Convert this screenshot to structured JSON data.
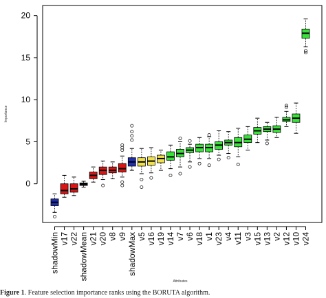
{
  "chart_data": {
    "type": "box",
    "xlabel": "Attributes",
    "ylabel": "Importance",
    "ylim": [
      -4.6,
      21.2
    ],
    "yticks": [
      0,
      5,
      10,
      15,
      20
    ],
    "grid": false,
    "colors": {
      "blue": "#1f2fb0",
      "red": "#d81616",
      "black": "#111111",
      "yellow": "#f2e24a",
      "green": "#3be13b"
    },
    "boxes": [
      {
        "name": "shadowMin",
        "color": "blue",
        "min": -3.4,
        "q1": -2.6,
        "median": -2.2,
        "q3": -1.8,
        "max": -1.2,
        "outliers": [
          -3.9
        ]
      },
      {
        "name": "v17",
        "color": "red",
        "min": -1.6,
        "q1": -1.2,
        "median": -0.8,
        "q3": 0.0,
        "max": 1.0,
        "outliers": []
      },
      {
        "name": "v22",
        "color": "red",
        "min": -1.4,
        "q1": -1.0,
        "median": -0.6,
        "q3": 0.0,
        "max": 0.8,
        "outliers": []
      },
      {
        "name": "shadowMean",
        "color": "black",
        "min": -0.4,
        "q1": -0.2,
        "median": 0.0,
        "q3": 0.1,
        "max": 0.3,
        "outliers": []
      },
      {
        "name": "v21",
        "color": "red",
        "min": 0.2,
        "q1": 0.6,
        "median": 1.0,
        "q3": 1.4,
        "max": 2.0,
        "outliers": []
      },
      {
        "name": "v20",
        "color": "red",
        "min": 0.5,
        "q1": 1.1,
        "median": 1.6,
        "q3": 2.0,
        "max": 2.7,
        "outliers": [
          -0.2
        ]
      },
      {
        "name": "v8",
        "color": "red",
        "min": 0.6,
        "q1": 1.3,
        "median": 1.6,
        "q3": 2.0,
        "max": 2.6,
        "outliers": []
      },
      {
        "name": "v9",
        "color": "red",
        "min": 0.8,
        "q1": 1.4,
        "median": 1.8,
        "q3": 2.4,
        "max": 3.3,
        "outliers": [
          4.0,
          4.3,
          4.6,
          0.2,
          -0.2
        ]
      },
      {
        "name": "shadowMax",
        "color": "blue",
        "min": 1.6,
        "q1": 2.1,
        "median": 2.6,
        "q3": 3.1,
        "max": 4.2,
        "outliers": [
          5.2,
          5.7,
          6.2,
          6.9
        ]
      },
      {
        "name": "v5",
        "color": "yellow",
        "min": 1.2,
        "q1": 2.1,
        "median": 2.6,
        "q3": 3.1,
        "max": 4.2,
        "outliers": [
          0.5,
          -0.4
        ]
      },
      {
        "name": "v16",
        "color": "yellow",
        "min": 1.3,
        "q1": 2.2,
        "median": 2.7,
        "q3": 3.2,
        "max": 4.3,
        "outliers": [
          0.7
        ]
      },
      {
        "name": "v19",
        "color": "yellow",
        "min": 1.6,
        "q1": 2.5,
        "median": 3.0,
        "q3": 3.4,
        "max": 4.0,
        "outliers": []
      },
      {
        "name": "v14",
        "color": "green",
        "min": 1.8,
        "q1": 2.8,
        "median": 3.2,
        "q3": 3.8,
        "max": 4.6,
        "outliers": [
          1.0
        ]
      },
      {
        "name": "v7",
        "color": "green",
        "min": 2.0,
        "q1": 3.2,
        "median": 3.6,
        "q3": 4.1,
        "max": 5.0,
        "outliers": [
          1.2,
          5.4
        ]
      },
      {
        "name": "v6",
        "color": "green",
        "min": 2.6,
        "q1": 3.7,
        "median": 4.0,
        "q3": 4.3,
        "max": 4.7,
        "outliers": [
          2.0,
          5.1
        ]
      },
      {
        "name": "v18",
        "color": "green",
        "min": 3.0,
        "q1": 3.8,
        "median": 4.3,
        "q3": 4.7,
        "max": 5.5,
        "outliers": [
          2.4
        ]
      },
      {
        "name": "v1",
        "color": "green",
        "min": 3.0,
        "q1": 3.8,
        "median": 4.3,
        "q3": 4.7,
        "max": 5.6,
        "outliers": [
          2.2,
          5.8
        ]
      },
      {
        "name": "v23",
        "color": "green",
        "min": 3.4,
        "q1": 4.1,
        "median": 4.6,
        "q3": 5.0,
        "max": 6.3,
        "outliers": [
          2.9
        ]
      },
      {
        "name": "v4",
        "color": "green",
        "min": 3.6,
        "q1": 4.6,
        "median": 4.9,
        "q3": 5.2,
        "max": 6.2,
        "outliers": [
          3.1
        ]
      },
      {
        "name": "v11",
        "color": "green",
        "min": 3.2,
        "q1": 4.4,
        "median": 4.9,
        "q3": 5.5,
        "max": 6.6,
        "outliers": [
          2.3
        ]
      },
      {
        "name": "v3",
        "color": "green",
        "min": 4.0,
        "q1": 4.9,
        "median": 5.3,
        "q3": 5.8,
        "max": 6.8,
        "outliers": []
      },
      {
        "name": "v15",
        "color": "green",
        "min": 4.9,
        "q1": 5.9,
        "median": 6.3,
        "q3": 6.7,
        "max": 7.8,
        "outliers": []
      },
      {
        "name": "v13",
        "color": "green",
        "min": 5.2,
        "q1": 6.2,
        "median": 6.5,
        "q3": 6.8,
        "max": 7.3,
        "outliers": [
          4.8
        ]
      },
      {
        "name": "v2",
        "color": "green",
        "min": 5.5,
        "q1": 6.1,
        "median": 6.5,
        "q3": 6.9,
        "max": 7.9,
        "outliers": []
      },
      {
        "name": "v12",
        "color": "green",
        "min": 6.8,
        "q1": 7.4,
        "median": 7.6,
        "q3": 7.9,
        "max": 8.6,
        "outliers": [
          9.1,
          9.3
        ]
      },
      {
        "name": "v10",
        "color": "green",
        "min": 6.0,
        "q1": 7.3,
        "median": 7.8,
        "q3": 8.3,
        "max": 9.6,
        "outliers": []
      },
      {
        "name": "v24",
        "color": "green",
        "min": 16.3,
        "q1": 17.3,
        "median": 17.9,
        "q3": 18.4,
        "max": 19.6,
        "outliers": [
          15.6,
          15.8
        ]
      }
    ]
  },
  "caption": {
    "label": "Figure 1",
    "text": ". Feature selection importance ranks using the BORUTA algorithm."
  }
}
